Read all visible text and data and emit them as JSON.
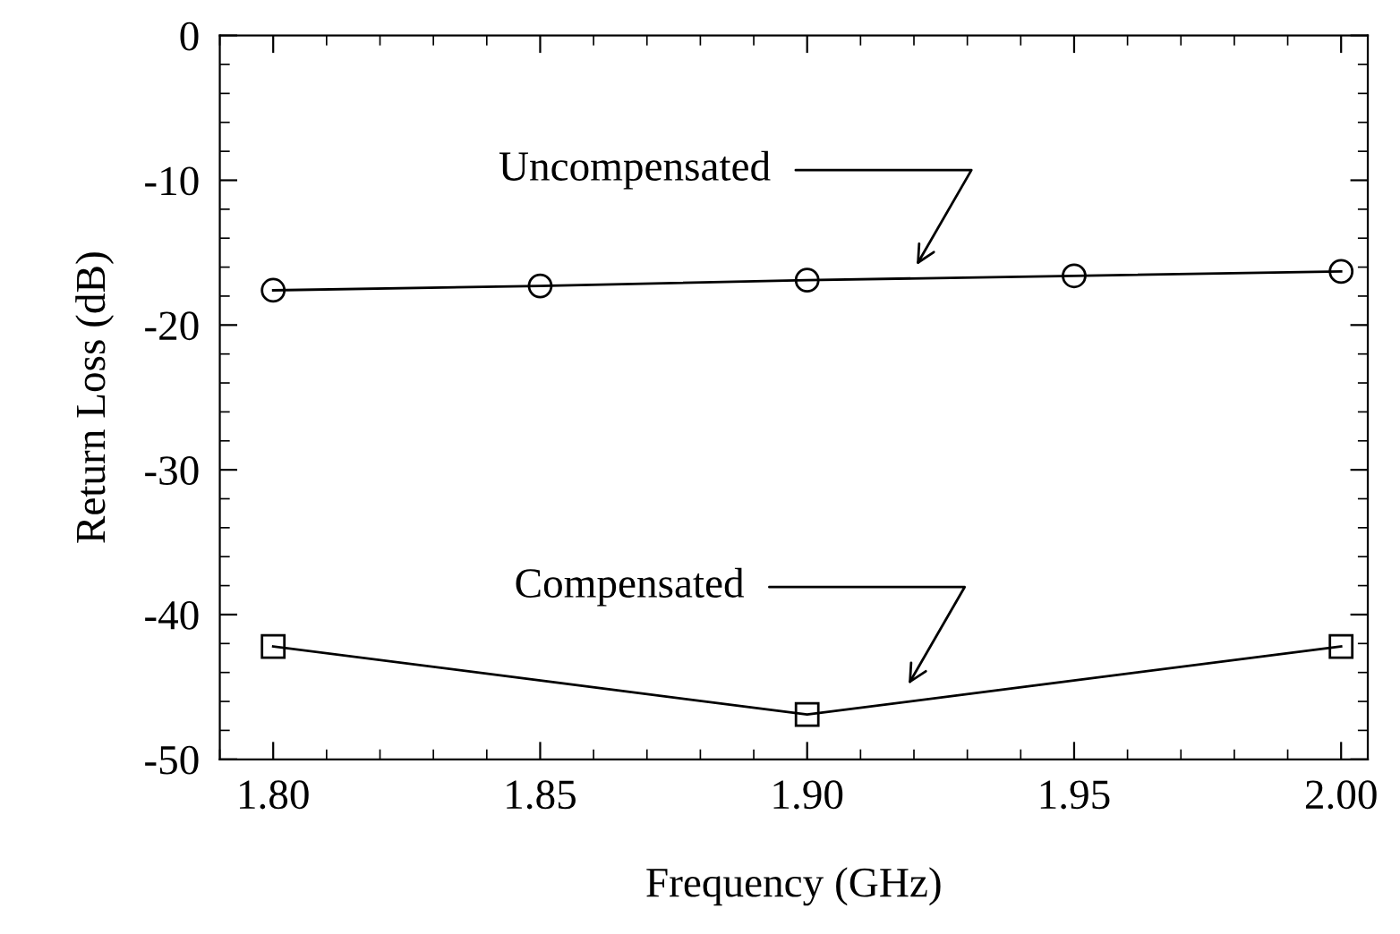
{
  "chart_data": {
    "type": "line",
    "xlabel": "Frequency (GHz)",
    "ylabel": "Return Loss (dB)",
    "xlim": [
      1.79,
      2.005
    ],
    "ylim": [
      -50,
      0
    ],
    "xticks": [
      {
        "value": 1.8,
        "label": "1.80"
      },
      1.85,
      {
        "value": 1.9,
        "label": "1.90"
      },
      1.95,
      {
        "value": 2.0,
        "label": "2.00"
      }
    ],
    "yticks": [
      -50,
      -40,
      -30,
      -20,
      -10,
      0
    ],
    "grid": false,
    "legend": false,
    "line_style": "solid",
    "series": [
      {
        "color": "#000000",
        "marker": "circle",
        "x": [
          1.8,
          1.85,
          1.9,
          1.95,
          2.0
        ],
        "values": [
          -17.6,
          -17.3,
          -16.9,
          -16.6,
          -16.3
        ]
      },
      {
        "color": "#000000",
        "marker": "square",
        "x": [
          1.8,
          1.9,
          2.0
        ],
        "values": [
          -42.2,
          -46.9,
          -42.2
        ]
      }
    ],
    "annotations": [
      "Uncompensated",
      "Compensated"
    ]
  }
}
